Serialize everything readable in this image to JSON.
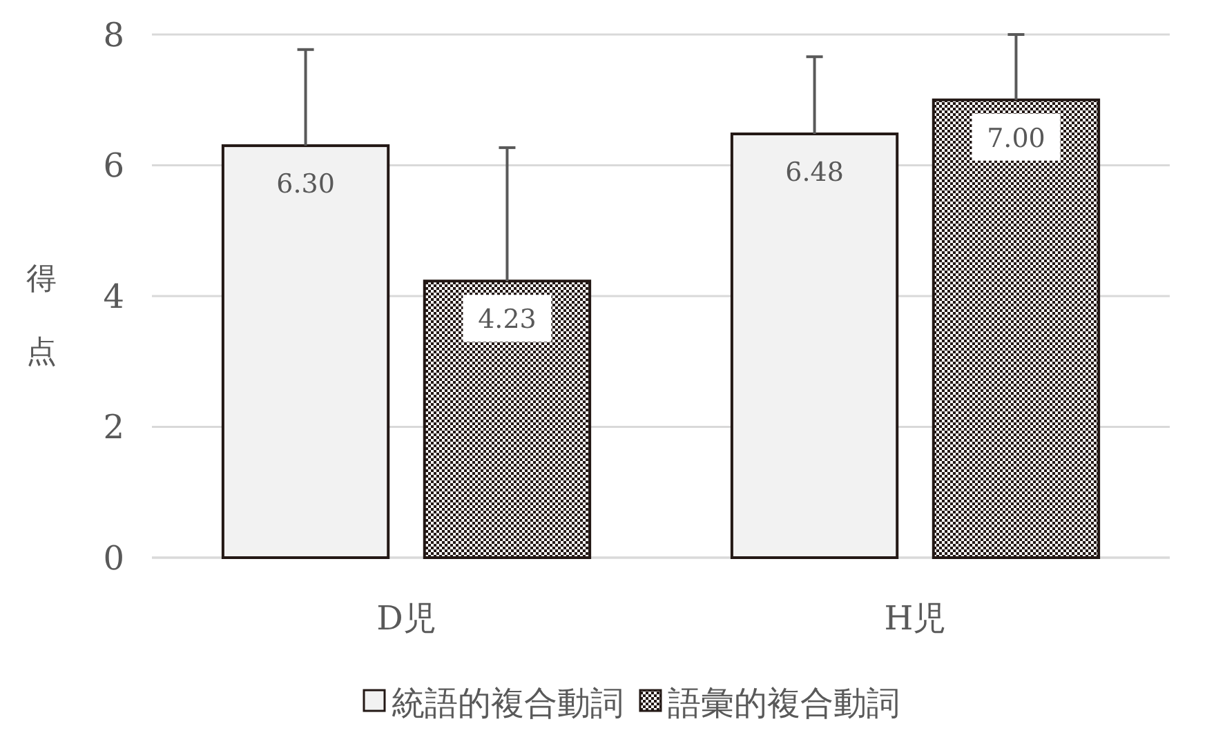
{
  "chart_data": {
    "type": "bar",
    "ylabel": "得点",
    "categories": [
      "D児",
      "H児"
    ],
    "series": [
      {
        "name": "統語的複合動詞",
        "color": "#f2f2f2",
        "values": [
          6.3,
          6.48
        ],
        "errors": [
          [
            6.3,
            7.77
          ],
          [
            6.48,
            7.66
          ]
        ],
        "value_labels": [
          "6.30",
          "6.48"
        ]
      },
      {
        "name": "語彙的複合動詞",
        "color": "#231815",
        "values": [
          4.23,
          7.0
        ],
        "errors": [
          [
            4.23,
            6.27
          ],
          [
            7.0,
            8.0
          ]
        ],
        "value_labels": [
          "4.23",
          "7.00"
        ]
      }
    ],
    "ylim": [
      0,
      8
    ],
    "yticks": [
      0,
      2,
      4,
      6,
      8
    ],
    "grid": "y",
    "legend": "bottom"
  }
}
